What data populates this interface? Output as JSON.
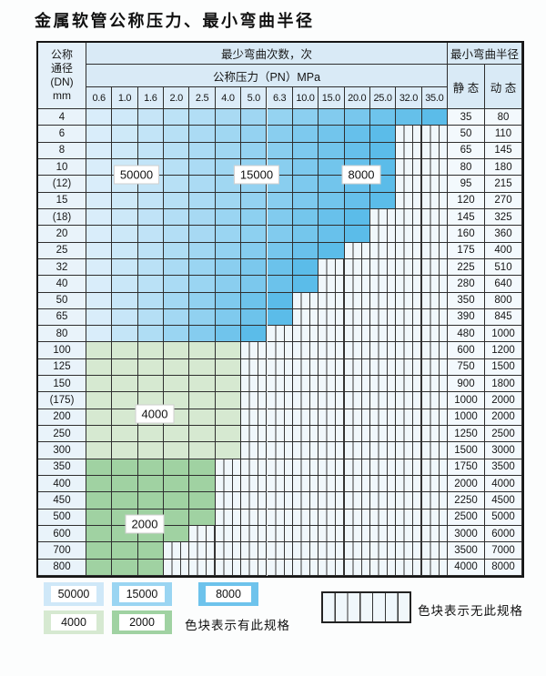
{
  "title": "金属软管公称压力、最小弯曲半径",
  "table": {
    "dn_header_lines": [
      "公称",
      "通径",
      "(DN)",
      "mm"
    ],
    "cycles_header": "最少弯曲次数，次",
    "pressure_header": "公称压力（PN）MPa",
    "radius_header": "最小弯曲半径",
    "static_header": "静 态",
    "dynamic_header": "动 态",
    "pressure_columns": [
      "0.6",
      "1.0",
      "1.6",
      "2.0",
      "2.5",
      "4.0",
      "5.0",
      "6.3",
      "10.0",
      "15.0",
      "20.0",
      "25.0",
      "32.0",
      "35.0"
    ]
  },
  "overlays": [
    {
      "text": "50000"
    },
    {
      "text": "15000"
    },
    {
      "text": "8000"
    },
    {
      "text": "4000"
    },
    {
      "text": "2000"
    }
  ],
  "legend": {
    "items": [
      {
        "label": "50000",
        "color": "#cfe8f8"
      },
      {
        "label": "15000",
        "color": "#9ad5f2"
      },
      {
        "label": "8000",
        "color": "#6ec3ec"
      },
      {
        "label": "4000",
        "color": "#d6e9d1"
      },
      {
        "label": "2000",
        "color": "#a0d2a2"
      }
    ],
    "has_spec_text": "色块表示有此规格",
    "no_spec_text": "色块表示无此规格"
  },
  "colors": {
    "blue_ramp_start": "#d9edfa",
    "blue_ramp_end": "#5bbce9",
    "green_4000": "#d6e9d1",
    "green_2000": "#a0d2a2",
    "header_bg": "#d9eaf6",
    "hatch_bg": "#f0f7fb",
    "hatch_line": "#3a3a3a",
    "grid_line": "#2e2e2e"
  },
  "chart_data": {
    "type": "table",
    "title": "金属软管公称压力、最小弯曲半径",
    "pressure_columns_MPa": [
      0.6,
      1.0,
      1.6,
      2.0,
      2.5,
      4.0,
      5.0,
      6.3,
      10.0,
      15.0,
      20.0,
      25.0,
      32.0,
      35.0
    ],
    "cycle_regions": [
      {
        "label": "50000",
        "color_family": "light-blue",
        "approx_columns": "0.6-2.5",
        "rows": "DN 4-80"
      },
      {
        "label": "15000",
        "color_family": "medium-blue",
        "approx_columns": "4.0-6.3",
        "rows": "DN 4-80"
      },
      {
        "label": "8000",
        "color_family": "strong-blue",
        "approx_columns": "10.0-35.0",
        "rows": "DN 4-80"
      },
      {
        "label": "4000",
        "color_family": "light-green",
        "approx_columns": "0.6-4.0",
        "rows": "DN 100-300"
      },
      {
        "label": "2000",
        "color_family": "medium-green",
        "approx_columns": "0.6-2.5 tapering to 1.6",
        "rows": "DN 350-800"
      }
    ],
    "rows": [
      {
        "dn": "4",
        "band": "blue",
        "max_pn": "35.0",
        "static": "35",
        "dynamic": "80"
      },
      {
        "dn": "6",
        "band": "blue",
        "max_pn": "25.0",
        "static": "50",
        "dynamic": "110"
      },
      {
        "dn": "8",
        "band": "blue",
        "max_pn": "25.0",
        "static": "65",
        "dynamic": "145"
      },
      {
        "dn": "10",
        "band": "blue",
        "max_pn": "25.0",
        "static": "80",
        "dynamic": "180"
      },
      {
        "dn": "(12)",
        "band": "blue",
        "max_pn": "25.0",
        "static": "95",
        "dynamic": "215"
      },
      {
        "dn": "15",
        "band": "blue",
        "max_pn": "25.0",
        "static": "120",
        "dynamic": "270"
      },
      {
        "dn": "(18)",
        "band": "blue",
        "max_pn": "20.0",
        "static": "145",
        "dynamic": "325"
      },
      {
        "dn": "20",
        "band": "blue",
        "max_pn": "20.0",
        "static": "160",
        "dynamic": "360"
      },
      {
        "dn": "25",
        "band": "blue",
        "max_pn": "15.0",
        "static": "175",
        "dynamic": "400"
      },
      {
        "dn": "32",
        "band": "blue",
        "max_pn": "10.0",
        "static": "225",
        "dynamic": "510"
      },
      {
        "dn": "40",
        "band": "blue",
        "max_pn": "10.0",
        "static": "280",
        "dynamic": "640"
      },
      {
        "dn": "50",
        "band": "blue",
        "max_pn": "6.3",
        "static": "350",
        "dynamic": "800"
      },
      {
        "dn": "65",
        "band": "blue",
        "max_pn": "6.3",
        "static": "390",
        "dynamic": "845"
      },
      {
        "dn": "80",
        "band": "blue",
        "max_pn": "5.0",
        "static": "480",
        "dynamic": "1000"
      },
      {
        "dn": "100",
        "band": "green-4000",
        "max_pn": "4.0",
        "static": "600",
        "dynamic": "1200"
      },
      {
        "dn": "125",
        "band": "green-4000",
        "max_pn": "4.0",
        "static": "750",
        "dynamic": "1500"
      },
      {
        "dn": "150",
        "band": "green-4000",
        "max_pn": "4.0",
        "static": "900",
        "dynamic": "1800"
      },
      {
        "dn": "(175)",
        "band": "green-4000",
        "max_pn": "4.0",
        "static": "1000",
        "dynamic": "2000"
      },
      {
        "dn": "200",
        "band": "green-4000",
        "max_pn": "4.0",
        "static": "1000",
        "dynamic": "2000"
      },
      {
        "dn": "250",
        "band": "green-4000",
        "max_pn": "4.0",
        "static": "1250",
        "dynamic": "2500"
      },
      {
        "dn": "300",
        "band": "green-4000",
        "max_pn": "4.0",
        "static": "1500",
        "dynamic": "3000"
      },
      {
        "dn": "350",
        "band": "green-2000",
        "max_pn": "2.5",
        "static": "1750",
        "dynamic": "3500"
      },
      {
        "dn": "400",
        "band": "green-2000",
        "max_pn": "2.5",
        "static": "2000",
        "dynamic": "4000"
      },
      {
        "dn": "450",
        "band": "green-2000",
        "max_pn": "2.5",
        "static": "2250",
        "dynamic": "4500"
      },
      {
        "dn": "500",
        "band": "green-2000",
        "max_pn": "2.5",
        "static": "2500",
        "dynamic": "5000"
      },
      {
        "dn": "600",
        "band": "green-2000",
        "max_pn": "2.0",
        "static": "3000",
        "dynamic": "6000"
      },
      {
        "dn": "700",
        "band": "green-2000",
        "max_pn": "1.6",
        "static": "3500",
        "dynamic": "7000"
      },
      {
        "dn": "800",
        "band": "green-2000",
        "max_pn": "1.6",
        "static": "4000",
        "dynamic": "8000"
      }
    ]
  }
}
